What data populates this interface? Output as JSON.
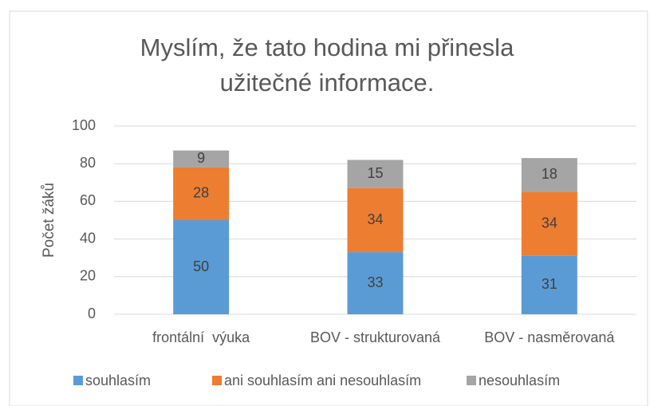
{
  "chart_data": {
    "type": "stacked_bar",
    "title": [
      "Myslím, že tato hodina mi přinesla",
      "užitečné informace."
    ],
    "y_label": "Počet žáků",
    "categories": [
      "frontální  výuka",
      "BOV - strukturovaná",
      "BOV - nasměrovaná"
    ],
    "series": [
      {
        "name": "souhlasím",
        "color": "#5b9bd5",
        "values": [
          50,
          33,
          31
        ]
      },
      {
        "name": "ani souhlasím ani nesouhlasím",
        "color": "#ed7d31",
        "values": [
          28,
          34,
          34
        ]
      },
      {
        "name": "nesouhlasím",
        "color": "#a5a5a5",
        "values": [
          9,
          15,
          18
        ]
      }
    ],
    "ylim": [
      0,
      100
    ],
    "yticks": [
      0,
      20,
      40,
      60,
      80,
      100
    ],
    "grid": true,
    "legend": "bottom"
  }
}
